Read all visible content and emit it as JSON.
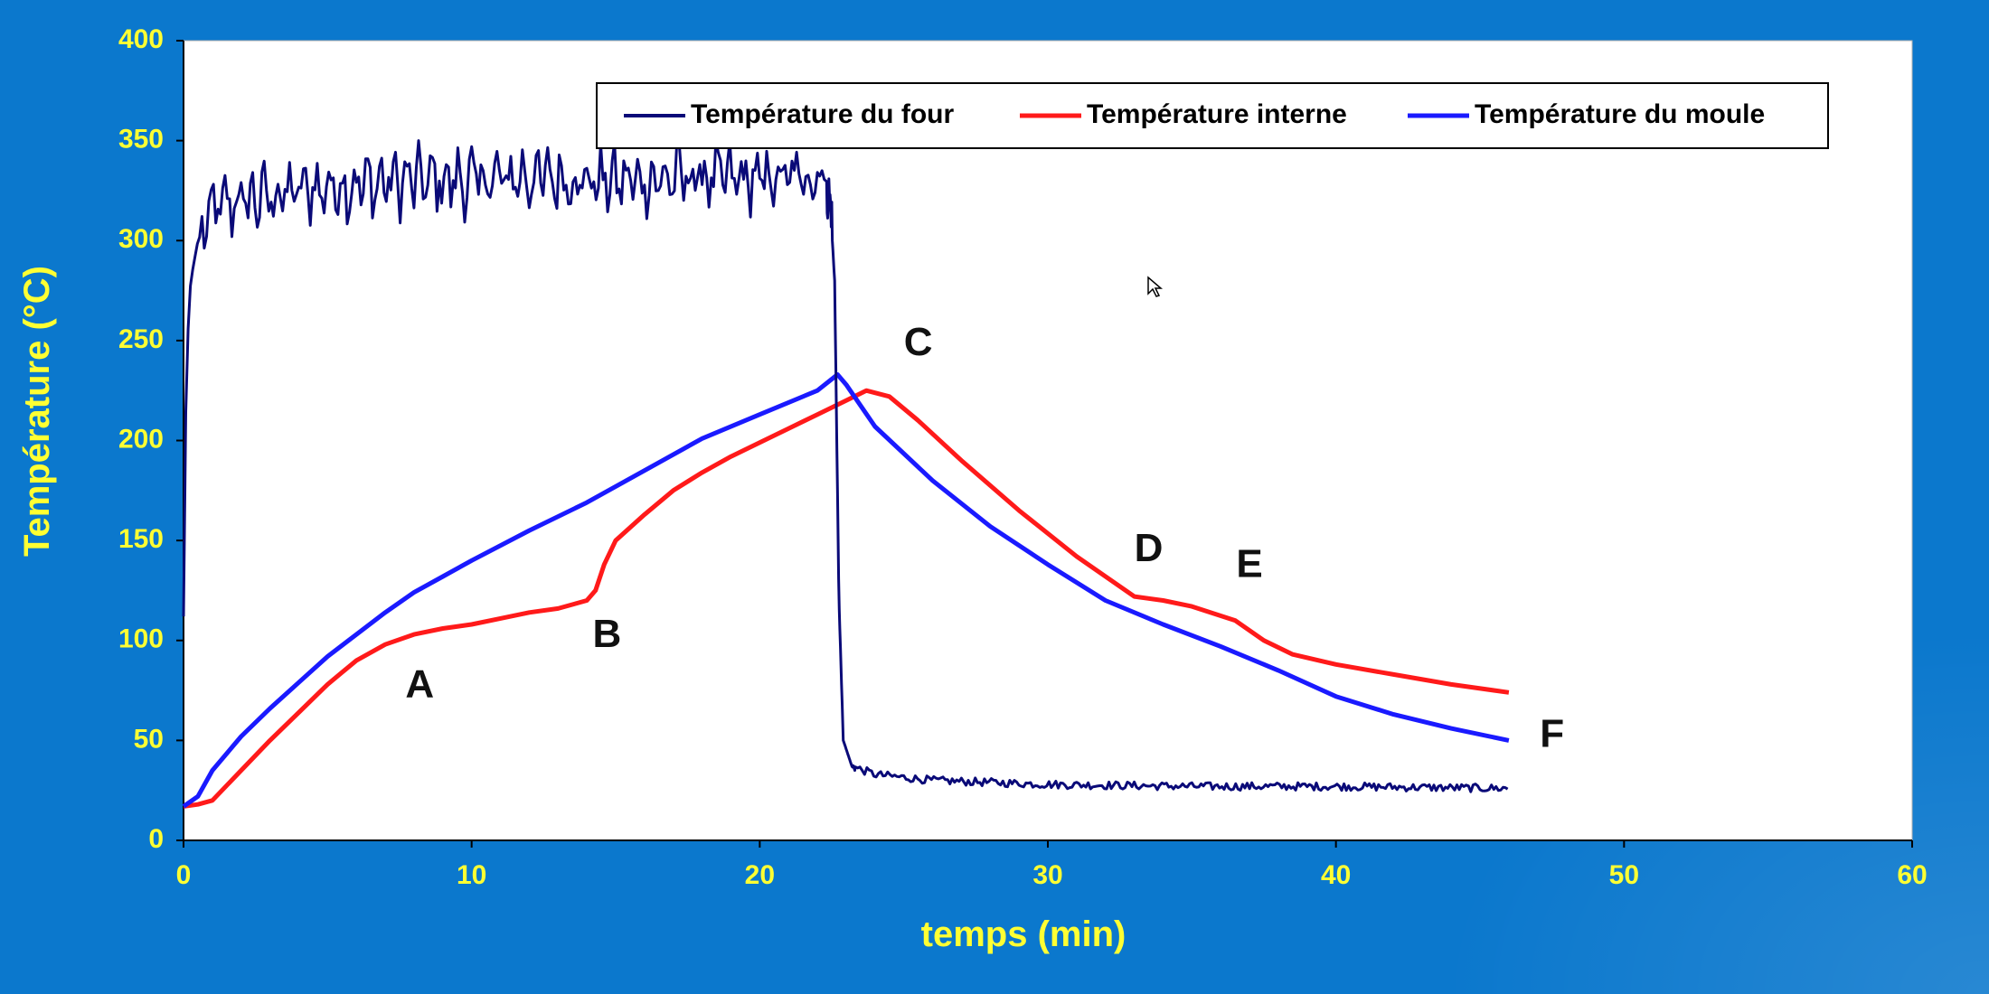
{
  "colors": {
    "background": "#0b78cd",
    "axis_text": "#ffff33",
    "plot_bg": "#ffffff",
    "four": "#0a0a78",
    "interne": "#ff1a1a",
    "moule": "#1a1aff"
  },
  "chart_data": {
    "type": "line",
    "xlabel": "temps (min)",
    "ylabel": "Température (°C)",
    "xlim": [
      0,
      60
    ],
    "ylim": [
      0,
      400
    ],
    "xticks": [
      0,
      10,
      20,
      30,
      40,
      50,
      60
    ],
    "yticks": [
      0,
      50,
      100,
      150,
      200,
      250,
      300,
      350,
      400
    ],
    "legend_position": "top-center",
    "series": [
      {
        "name": "Température du four",
        "color": "#0a0a78",
        "noisy": true,
        "x": [
          0,
          0.1,
          0.25,
          0.5,
          1,
          1.5,
          2,
          3,
          4,
          6,
          8,
          10,
          12,
          14,
          16,
          18,
          20,
          22,
          22.4,
          22.6,
          22.75,
          22.9,
          23.2,
          24,
          26,
          30,
          35,
          40,
          46
        ],
        "y": [
          112,
          240,
          280,
          300,
          315,
          318,
          320,
          322,
          325,
          328,
          330,
          330,
          332,
          330,
          330,
          332,
          330,
          333,
          330,
          280,
          120,
          50,
          37,
          33,
          30,
          28,
          27,
          27,
          26
        ]
      },
      {
        "name": "Température interne",
        "color": "#ff1a1a",
        "noisy": false,
        "x": [
          0,
          0.5,
          1,
          2,
          3,
          4,
          5,
          6,
          7,
          8,
          9,
          10,
          11,
          12,
          13,
          14,
          14.3,
          14.6,
          15,
          16,
          17,
          18,
          19,
          20,
          21,
          22,
          23,
          23.7,
          24.5,
          25.5,
          27,
          29,
          31,
          33,
          34,
          35,
          36.5,
          37.5,
          38.5,
          40,
          42,
          44,
          46
        ],
        "y": [
          17,
          18,
          20,
          35,
          50,
          64,
          78,
          90,
          98,
          103,
          106,
          108,
          111,
          114,
          116,
          120,
          125,
          138,
          150,
          163,
          175,
          184,
          192,
          199,
          206,
          213,
          220,
          225,
          222,
          210,
          190,
          165,
          142,
          122,
          120,
          117,
          110,
          100,
          93,
          88,
          83,
          78,
          74
        ]
      },
      {
        "name": "Température du moule",
        "color": "#1a1aff",
        "noisy": false,
        "x": [
          0,
          0.5,
          1,
          2,
          3,
          4,
          5,
          6,
          7,
          8,
          9,
          10,
          12,
          14,
          16,
          18,
          20,
          22,
          22.7,
          23,
          24,
          26,
          28,
          30,
          32,
          34,
          36,
          38,
          40,
          42,
          44,
          46
        ],
        "y": [
          17,
          22,
          35,
          52,
          66,
          79,
          92,
          103,
          114,
          124,
          132,
          140,
          155,
          169,
          185,
          201,
          213,
          225,
          233,
          228,
          207,
          180,
          157,
          138,
          120,
          108,
          97,
          85,
          72,
          63,
          56,
          50
        ]
      }
    ],
    "annotations": [
      {
        "label": "A",
        "x": 8.2,
        "y": 77
      },
      {
        "label": "B",
        "x": 14.7,
        "y": 102
      },
      {
        "label": "C",
        "x": 25.5,
        "y": 248
      },
      {
        "label": "D",
        "x": 33.5,
        "y": 145
      },
      {
        "label": "E",
        "x": 37,
        "y": 137
      },
      {
        "label": "F",
        "x": 47.5,
        "y": 52
      }
    ]
  }
}
